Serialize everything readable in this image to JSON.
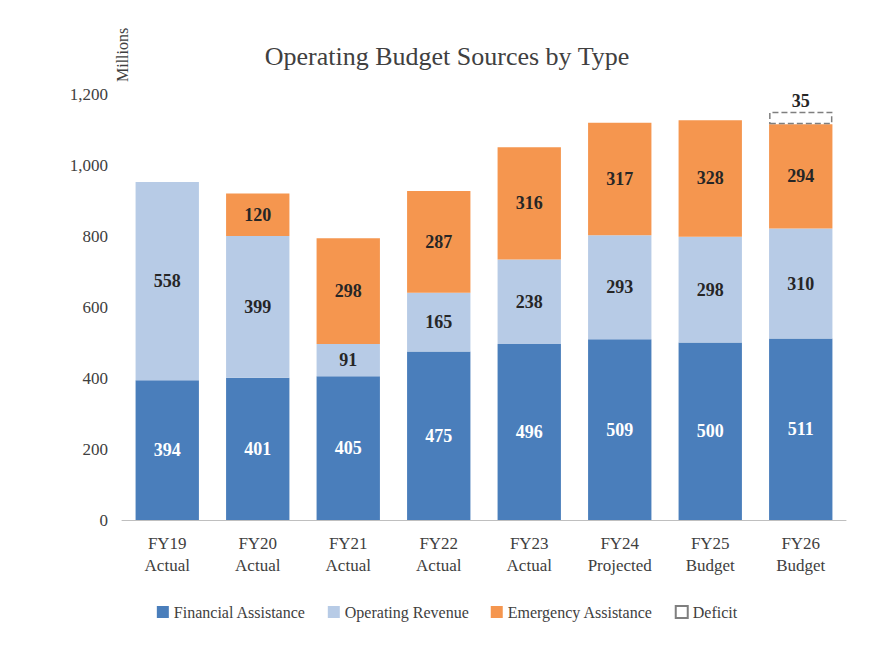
{
  "chart_data": {
    "type": "bar",
    "title": "Operating Budget Sources by Type",
    "y_label": "Millions",
    "categories": [
      "FY19 Actual",
      "FY20 Actual",
      "FY21 Actual",
      "FY22 Actual",
      "FY23 Actual",
      "FY24 Projected",
      "FY25 Budget",
      "FY26 Budget"
    ],
    "series": [
      {
        "name": "Financial Assistance",
        "color": "#4a7ebb",
        "values": [
          394,
          401,
          405,
          475,
          496,
          509,
          500,
          511
        ]
      },
      {
        "name": "Operating Revenue",
        "color": "#b7cbe6",
        "values": [
          558,
          399,
          91,
          165,
          238,
          293,
          298,
          310
        ]
      },
      {
        "name": "Emergency Assistance",
        "color": "#f5964f",
        "values": [
          null,
          120,
          298,
          287,
          316,
          317,
          328,
          294
        ]
      },
      {
        "name": "Deficit",
        "color": "#7f7f7f",
        "line_style": "dashed",
        "values": [
          null,
          null,
          null,
          null,
          null,
          null,
          null,
          35
        ]
      }
    ],
    "ylim": [
      0,
      1200
    ],
    "yticks": [
      0,
      200,
      400,
      600,
      800,
      {
        "value": 1000,
        "label": "1,000"
      },
      {
        "value": 1200,
        "label": "1,200"
      }
    ],
    "grid": false,
    "stacked": true,
    "data_labels": true,
    "legend": "bottom"
  }
}
